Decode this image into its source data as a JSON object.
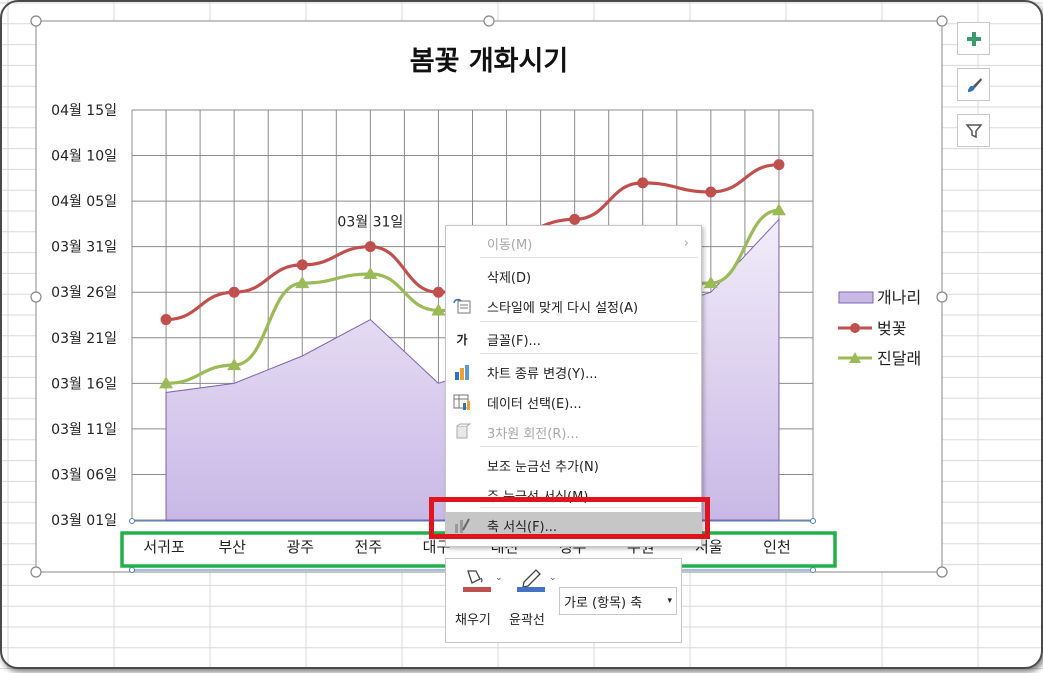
{
  "chart_data": {
    "type": "line",
    "title": "봄꽃 개화시기",
    "categories": [
      "서귀포",
      "부산",
      "광주",
      "전주",
      "대구",
      "대전",
      "청주",
      "수원",
      "서울",
      "인천"
    ],
    "categories_visible": [
      "서귀포",
      "부산",
      "광주",
      "전주",
      "대구",
      "대전",
      "청주",
      "수원",
      "서울",
      "인천"
    ],
    "y_tick_labels": [
      "03월 01일",
      "03월 06일",
      "03월 11일",
      "03월 16일",
      "03월 21일",
      "03월 26일",
      "03월 31일",
      "04월 05일",
      "04월 10일",
      "04월 15일"
    ],
    "ylim": [
      "03월 01일",
      "04월 15일"
    ],
    "gridlines": true,
    "legend_position": "right",
    "series": [
      {
        "name": "개나리",
        "kind": "area",
        "color": "#c9b8e6",
        "values": [
          "03월 15일",
          "03월 16일",
          "03월 19일",
          "03월 23일",
          "03월 16일",
          null,
          null,
          null,
          "03월 26일",
          "04월 03일"
        ]
      },
      {
        "name": "벚꽃",
        "kind": "line",
        "color": "#c0504d",
        "values": [
          "03월 23일",
          "03월 26일",
          "03월 29일",
          "03월 31일",
          "03월 26일",
          null,
          "04월 03일",
          "04월 07일",
          "04월 06일",
          "04월 09일"
        ]
      },
      {
        "name": "진달래",
        "kind": "line",
        "color": "#9bbb59",
        "values": [
          "03월 16일",
          "03월 18일",
          "03월 27일",
          "03월 28일",
          "03월 24일",
          null,
          null,
          null,
          "03월 27일",
          "04월 04일"
        ]
      }
    ],
    "data_labels": [
      {
        "series": "벚꽃",
        "category": "전주",
        "text": "03월 31일"
      }
    ]
  },
  "side_buttons": [
    {
      "name": "chart-elements",
      "icon": "plus-icon"
    },
    {
      "name": "chart-styles",
      "icon": "brush-icon"
    },
    {
      "name": "chart-filters",
      "icon": "filter-icon"
    }
  ],
  "context_menu": {
    "items": [
      {
        "label": "이동(M)",
        "disabled": true,
        "icon": "",
        "submenu": true
      },
      {
        "label": "삭제(D)",
        "disabled": false,
        "icon": ""
      },
      {
        "label": "스타일에 맞게 다시 설정(A)",
        "disabled": false,
        "icon": "reset-style-icon"
      },
      {
        "label": "글꼴(F)...",
        "disabled": false,
        "icon": "font-icon",
        "icon_text": "가"
      },
      {
        "label": "차트 종류 변경(Y)...",
        "disabled": false,
        "icon": "chart-type-icon"
      },
      {
        "label": "데이터 선택(E)...",
        "disabled": false,
        "icon": "select-data-icon"
      },
      {
        "label": "3차원 회전(R)...",
        "disabled": true,
        "icon": "rotation-icon"
      },
      {
        "label": "보조 눈금선 추가(N)",
        "disabled": false,
        "icon": ""
      },
      {
        "label": "주 눈금선 서식(M)...",
        "disabled": false,
        "icon": ""
      },
      {
        "label": "축 서식(F)...",
        "disabled": false,
        "icon": "format-axis-icon",
        "highlighted": true
      }
    ]
  },
  "mini_toolbar": {
    "fill_label": "채우기",
    "outline_label": "윤곽선",
    "element_select": "가로 (항목) 축",
    "fill_color": "#c0504d",
    "outline_color": "#4472c4"
  },
  "annotations": {
    "red_box_color": "#e0141c",
    "green_box_color": "#22b04b"
  }
}
